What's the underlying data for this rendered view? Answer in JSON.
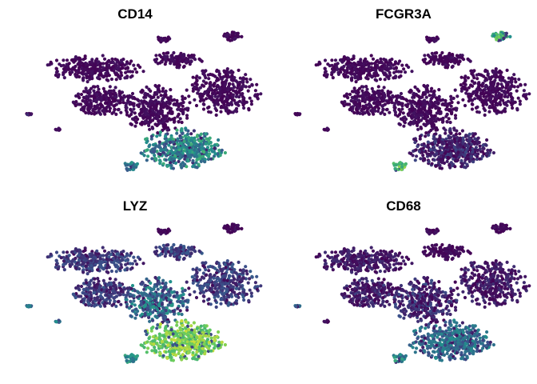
{
  "chart_data": [
    {
      "type": "scatter",
      "title": "CD14",
      "xlabel": "",
      "ylabel": "",
      "grid": false,
      "legend": "none",
      "colormap": [
        "#440154",
        "#3b528b",
        "#21918c",
        "#5ec962",
        "#fde725"
      ],
      "high_expression_clusters": [
        "lower-right monocyte cluster",
        "lower-left satellite"
      ]
    },
    {
      "type": "scatter",
      "title": "FCGR3A",
      "xlabel": "",
      "ylabel": "",
      "grid": false,
      "legend": "none",
      "colormap": [
        "#440154",
        "#3b528b",
        "#21918c",
        "#5ec962",
        "#fde725"
      ],
      "high_expression_clusters": [
        "top-right cluster",
        "lower-left satellite"
      ]
    },
    {
      "type": "scatter",
      "title": "LYZ",
      "xlabel": "",
      "ylabel": "",
      "grid": false,
      "legend": "none",
      "colormap": [
        "#440154",
        "#3b528b",
        "#21918c",
        "#5ec962",
        "#fde725"
      ],
      "high_expression_clusters": [
        "lower-right monocyte cluster",
        "lower-left satellite"
      ]
    },
    {
      "type": "scatter",
      "title": "CD68",
      "xlabel": "",
      "ylabel": "",
      "grid": false,
      "legend": "none",
      "colormap": [
        "#440154",
        "#3b528b",
        "#21918c",
        "#5ec962",
        "#fde725"
      ],
      "high_expression_clusters": [
        "lower-right monocyte cluster",
        "lower-left satellite"
      ]
    }
  ]
}
